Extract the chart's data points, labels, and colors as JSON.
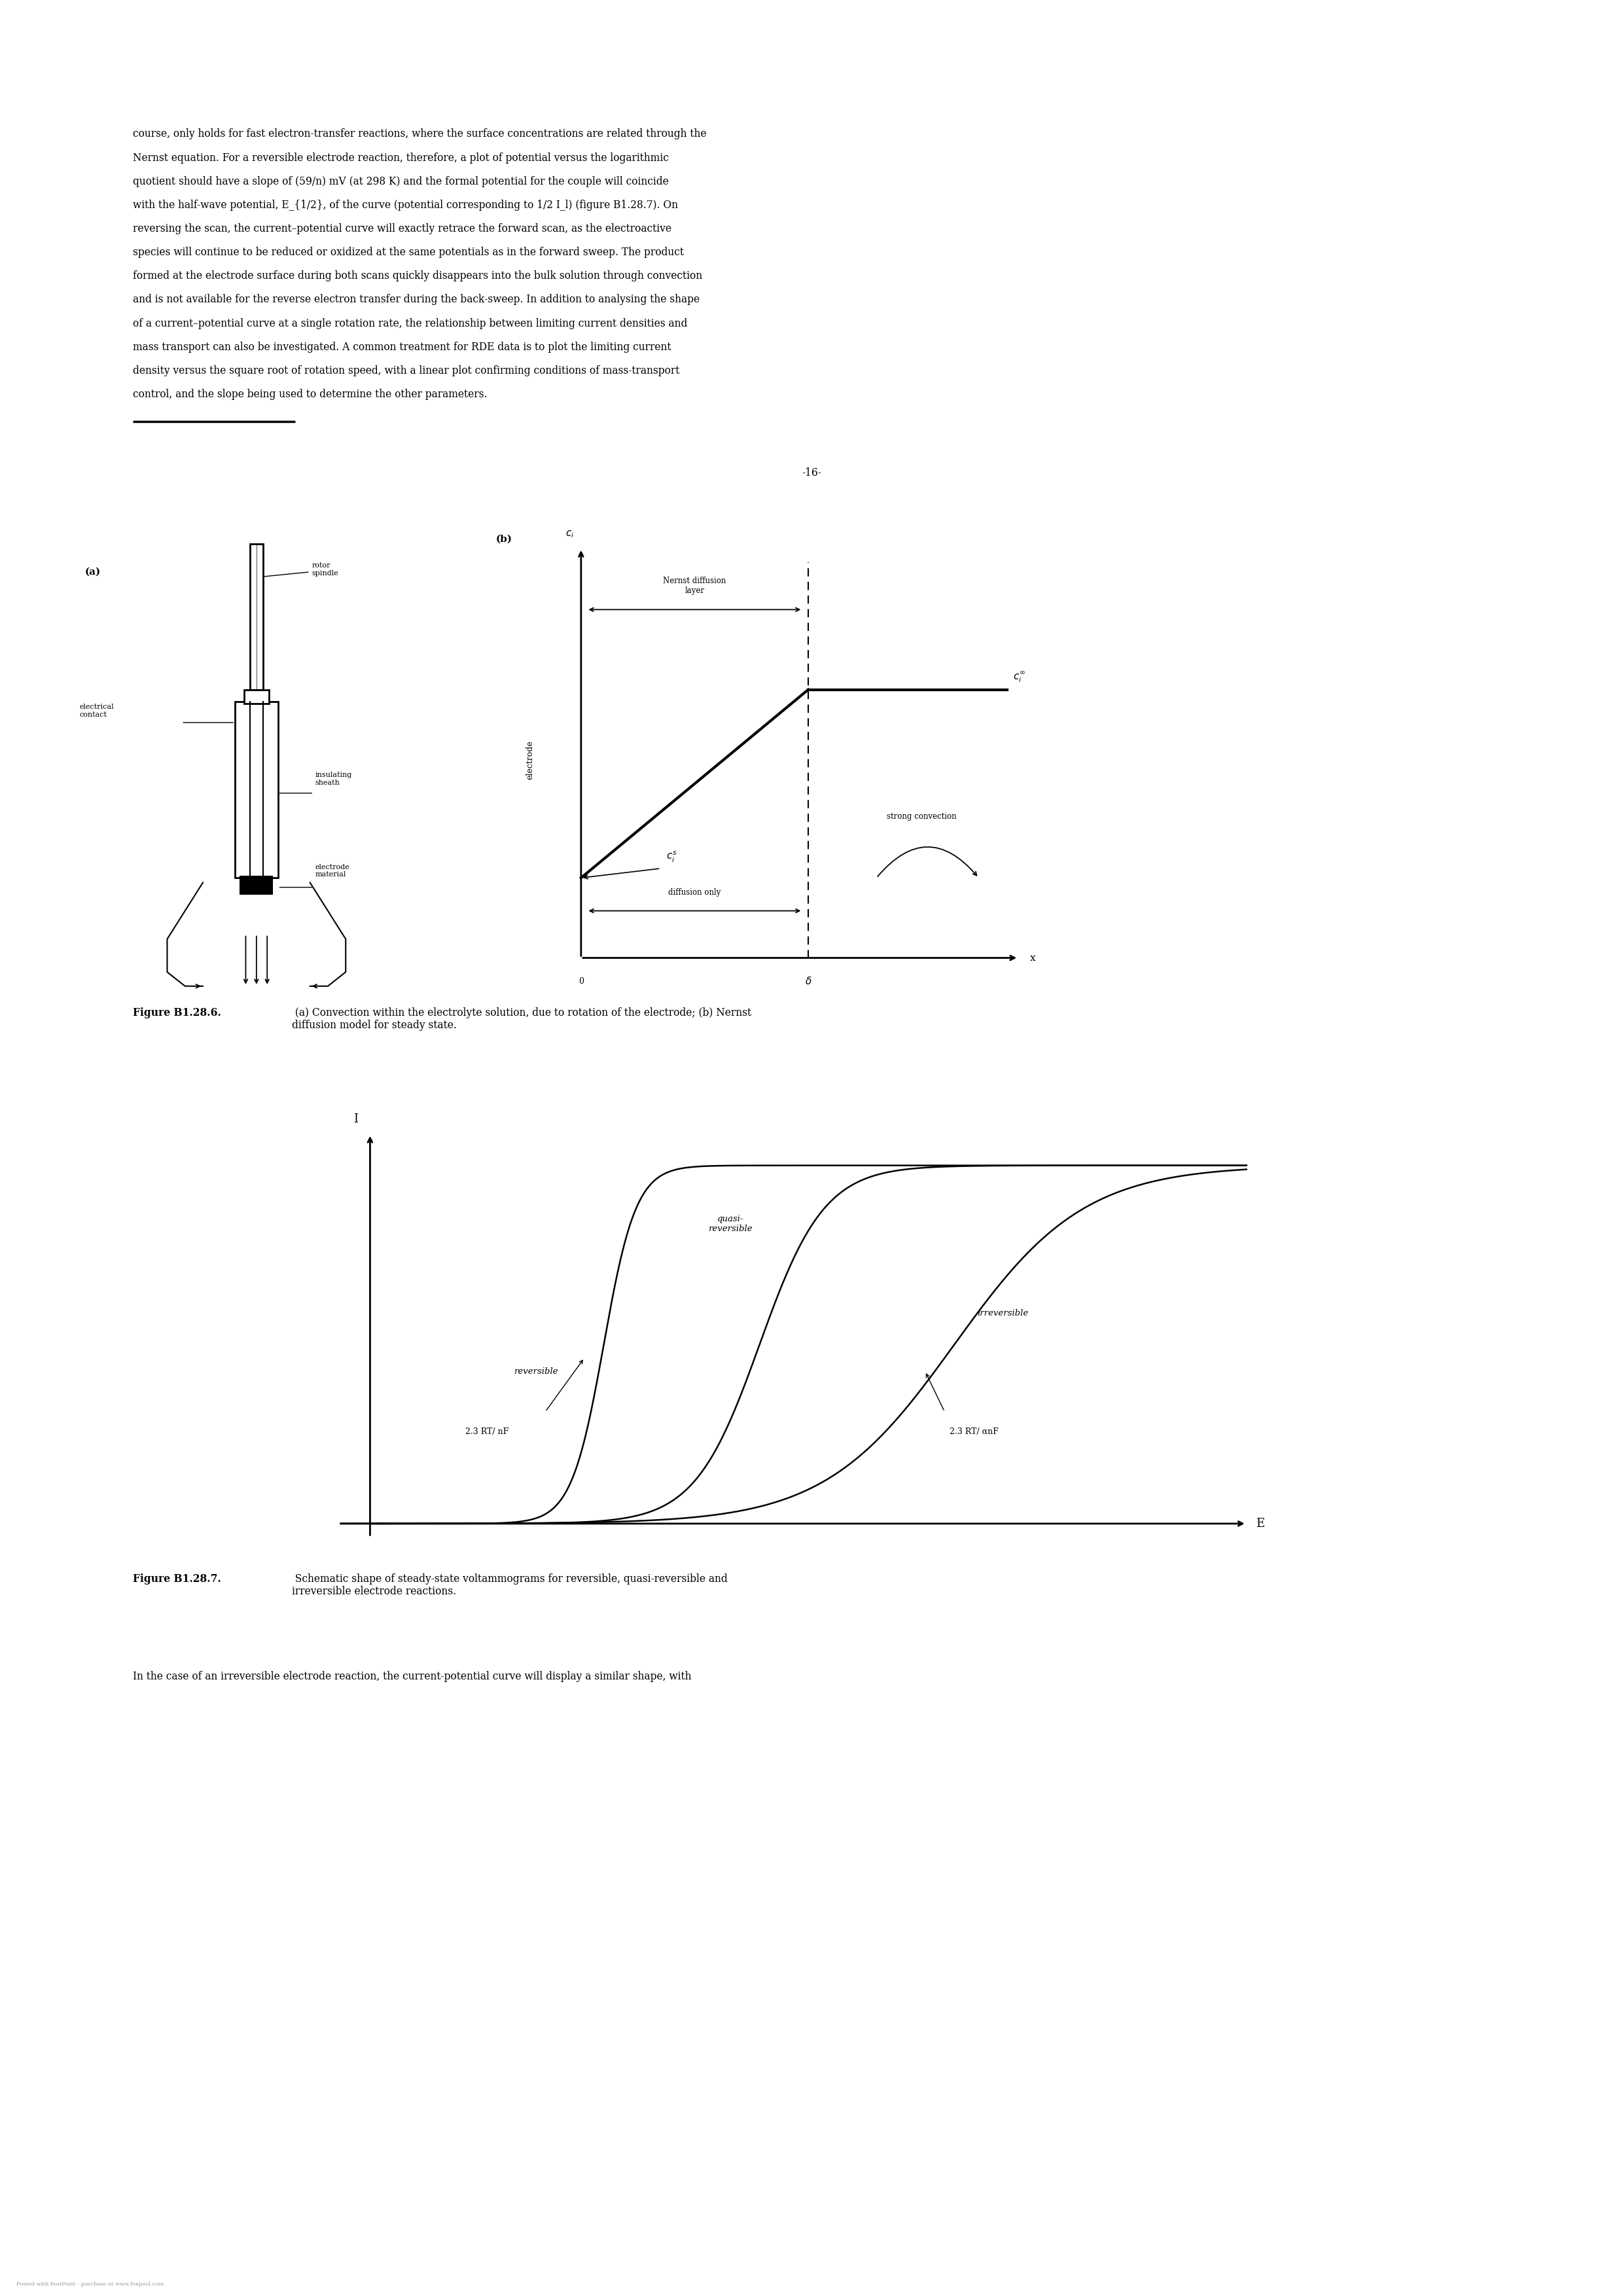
{
  "page_width": 24.8,
  "page_height": 35.08,
  "bg_color": "#ffffff",
  "text_color": "#000000",
  "body_lines": [
    "course, only holds for fast electron-transfer reactions, where the surface concentrations are related through the",
    "Nernst equation. For a reversible electrode reaction, therefore, a plot of potential versus the logarithmic",
    "quotient should have a slope of (59/n) mV (at 298 K) and the formal potential for the couple will coincide",
    "with the half-wave potential, E_{1/2}, of the curve (potential corresponding to 1/2 I_l) (figure B1.28.7). On",
    "reversing the scan, the current–potential curve will exactly retrace the forward scan, as the electroactive",
    "species will continue to be reduced or oxidized at the same potentials as in the forward sweep. The product",
    "formed at the electrode surface during both scans quickly disappears into the bulk solution through convection",
    "and is not available for the reverse electron transfer during the back-sweep. In addition to analysing the shape",
    "of a current–potential curve at a single rotation rate, the relationship between limiting current densities and",
    "mass transport can also be investigated. A common treatment for RDE data is to plot the limiting current",
    "density versus the square root of rotation speed, with a linear plot confirming conditions of mass-transport",
    "control, and the slope being used to determine the other parameters."
  ],
  "page_number": "-16-",
  "fig1_caption_bold": "Figure B1.28.6.",
  "fig1_caption_rest": " (a) Convection within the electrolyte solution, due to rotation of the electrode; (b) Nernst\ndiffusion model for steady state.",
  "fig2_caption_bold": "Figure B1.28.7.",
  "fig2_caption_rest": " Schematic shape of steady-state voltammograms for reversible, quasi-reversible and\nirreversible electrode reactions.",
  "bottom_text": "In the case of an irreversible electrode reaction, the current-potential curve will display a similar shape, with",
  "watermark": "Posted with PosiPoint - purchase at www.foxpool.com"
}
